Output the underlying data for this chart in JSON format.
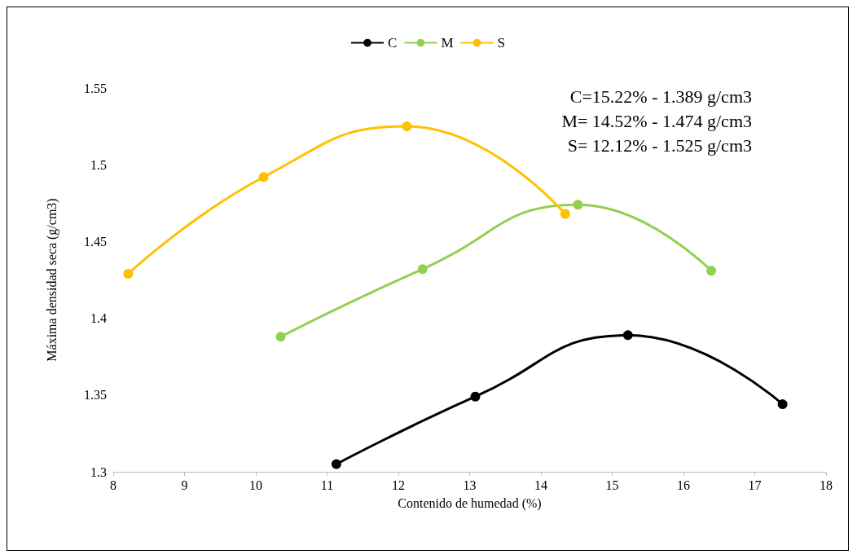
{
  "chart_data": {
    "type": "line",
    "xlabel": "Contenido de humedad (%)",
    "ylabel": "Máxima densidad seca (g/cm3)",
    "xlim": [
      8,
      18
    ],
    "xticks": [
      8,
      9,
      10,
      11,
      12,
      13,
      14,
      15,
      16,
      17,
      18
    ],
    "ylim": [
      1.3,
      1.55
    ],
    "yticks": [
      1.3,
      1.35,
      1.4,
      1.45,
      1.5,
      1.55
    ],
    "grid": false,
    "legend": "top",
    "marker": "circle",
    "line_style": "solid",
    "annotations": [
      "C=15.22% - 1.389 g/cm3",
      "M= 14.52% - 1.474 g/cm3",
      "S= 12.12% - 1.525 g/cm3"
    ],
    "series": [
      {
        "name": "C",
        "color": "#000000",
        "x": [
          11.13,
          13.08,
          15.22,
          17.39
        ],
        "values": [
          1.305,
          1.349,
          1.389,
          1.344
        ]
      },
      {
        "name": "M",
        "color": "#92d050",
        "x": [
          10.35,
          12.34,
          14.52,
          16.39
        ],
        "values": [
          1.388,
          1.432,
          1.474,
          1.431
        ]
      },
      {
        "name": "S",
        "color": "#ffc000",
        "x": [
          8.21,
          10.11,
          12.12,
          14.34
        ],
        "values": [
          1.429,
          1.492,
          1.525,
          1.468
        ]
      }
    ]
  }
}
